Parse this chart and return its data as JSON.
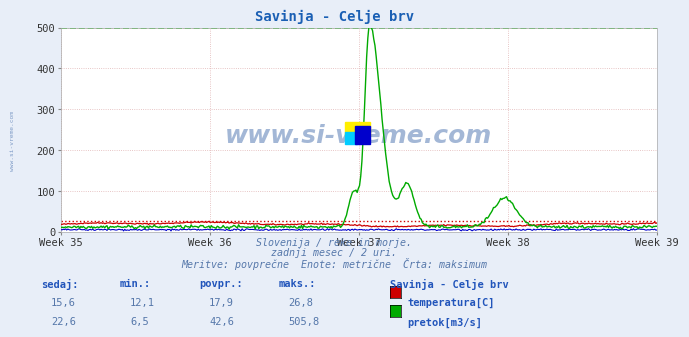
{
  "title": "Savinja - Celje brv",
  "title_color": "#1a5fb4",
  "bg_color": "#e8eef8",
  "plot_bg_color": "#ffffff",
  "grid_color": "#ddaaaa",
  "x_min": 0,
  "x_max": 336,
  "y_min": 0,
  "y_max": 500,
  "week_ticks": [
    0,
    84,
    168,
    252,
    336
  ],
  "week_labels": [
    "Week 35",
    "Week 36",
    "Week 37",
    "Week 38",
    "Week 39"
  ],
  "y_ticks": [
    0,
    100,
    200,
    300,
    400,
    500
  ],
  "temp_color": "#cc0000",
  "flow_color": "#00aa00",
  "level_color": "#0000cc",
  "max_line_green_color": "#00cc00",
  "max_line_red_color": "#cc0000",
  "max_line_value": 500,
  "temp_max_value": 26.8,
  "subtitle_lines": [
    "Slovenija / reke in morje.",
    "zadnji mesec / 2 uri.",
    "Meritve: povprečne  Enote: metrične  Črta: maksimum"
  ],
  "subtitle_color": "#5577aa",
  "table_header_color": "#2255bb",
  "table_value_color": "#5577aa",
  "table_headers": [
    "sedaj:",
    "min.:",
    "povpr.:",
    "maks.:"
  ],
  "table_rows": [
    {
      "sedaj": "15,6",
      "min": "12,1",
      "povpr": "17,9",
      "maks": "26,8",
      "color": "#cc0000",
      "label": "temperatura[C]"
    },
    {
      "sedaj": "22,6",
      "min": "6,5",
      "povpr": "42,6",
      "maks": "505,8",
      "color": "#00aa00",
      "label": "pretok[m3/s]"
    }
  ],
  "station_label": "Savinja - Celje brv",
  "watermark_color": "#6688bb",
  "watermark_text": "www.si-vreme.com",
  "side_text": "www.si-vreme.com"
}
